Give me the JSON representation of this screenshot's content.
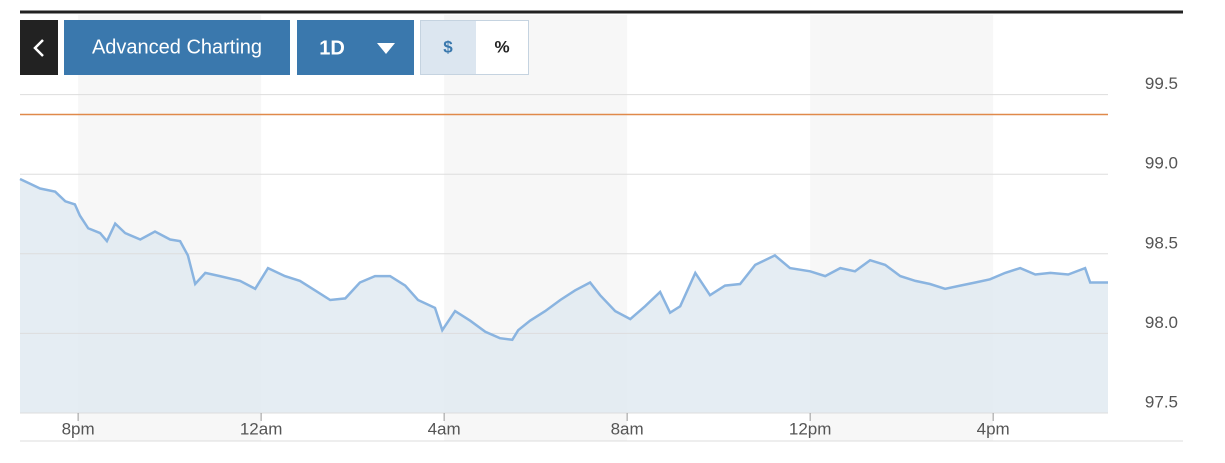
{
  "toolbar": {
    "title": "Advanced Charting",
    "period": "1D",
    "currency": "$",
    "percent": "%"
  },
  "chart_data": {
    "type": "area",
    "color": "#8ab4e0",
    "fill": "#e0eaf1",
    "reference_line": 99.375,
    "reference_color": "#e0894a",
    "grid": true,
    "x": [
      18.73,
      18.95,
      19.17,
      19.5,
      19.72,
      19.93,
      20.04,
      20.22,
      20.48,
      20.63,
      20.81,
      21.03,
      21.36,
      21.68,
      22.01,
      22.23,
      22.4,
      22.56,
      22.78,
      23.1,
      23.54,
      23.87,
      24.15,
      24.52,
      24.85,
      25.18,
      25.51,
      25.84,
      26.16,
      26.49,
      26.82,
      27.15,
      27.43,
      27.8,
      27.96,
      28.24,
      28.57,
      28.9,
      29.22,
      29.49,
      29.62,
      29.88,
      30.21,
      30.54,
      30.86,
      31.19,
      31.41,
      31.74,
      32.07,
      32.39,
      32.72,
      32.94,
      33.16,
      33.49,
      33.81,
      34.14,
      34.47,
      34.8,
      35.23,
      35.56,
      36,
      36.33,
      36.66,
      36.98,
      37.31,
      37.64,
      37.97,
      38.3,
      38.62,
      38.95,
      39.28,
      39.61,
      39.93,
      40.26,
      40.59,
      40.92,
      41.25,
      41.64,
      42.01,
      42.12,
      42.51
    ],
    "values": [
      98.97,
      98.94,
      98.91,
      98.89,
      98.83,
      98.81,
      98.74,
      98.66,
      98.63,
      98.58,
      98.69,
      98.63,
      98.59,
      98.64,
      98.59,
      98.58,
      98.49,
      98.31,
      98.38,
      98.36,
      98.33,
      98.28,
      98.41,
      98.36,
      98.33,
      98.27,
      98.21,
      98.22,
      98.32,
      98.36,
      98.36,
      98.3,
      98.21,
      98.16,
      98.02,
      98.14,
      98.08,
      98.01,
      97.97,
      97.96,
      98.02,
      98.08,
      98.14,
      98.21,
      98.27,
      98.32,
      98.24,
      98.14,
      98.09,
      98.17,
      98.26,
      98.13,
      98.17,
      98.38,
      98.24,
      98.3,
      98.31,
      98.43,
      98.49,
      98.41,
      98.39,
      98.36,
      98.41,
      98.39,
      98.46,
      98.43,
      98.36,
      98.33,
      98.31,
      98.28,
      98.3,
      98.32,
      98.34,
      98.38,
      98.41,
      98.37,
      98.38,
      98.37,
      98.41,
      98.32,
      98.32
    ],
    "xlim": [
      18.73,
      42.51
    ],
    "ylim": [
      97.5,
      100
    ],
    "xticks": [
      {
        "value": 20,
        "label": "8pm"
      },
      {
        "value": 24,
        "label": "12am"
      },
      {
        "value": 28,
        "label": "4am"
      },
      {
        "value": 32,
        "label": "8am"
      },
      {
        "value": 36,
        "label": "12pm"
      },
      {
        "value": 40,
        "label": "4pm"
      }
    ],
    "yticks": [
      {
        "value": 97.5,
        "label": "97.5"
      },
      {
        "value": 98,
        "label": "98.0"
      },
      {
        "value": 98.5,
        "label": "98.5"
      },
      {
        "value": 99,
        "label": "99.0"
      },
      {
        "value": 99.5,
        "label": "99.5"
      }
    ]
  }
}
